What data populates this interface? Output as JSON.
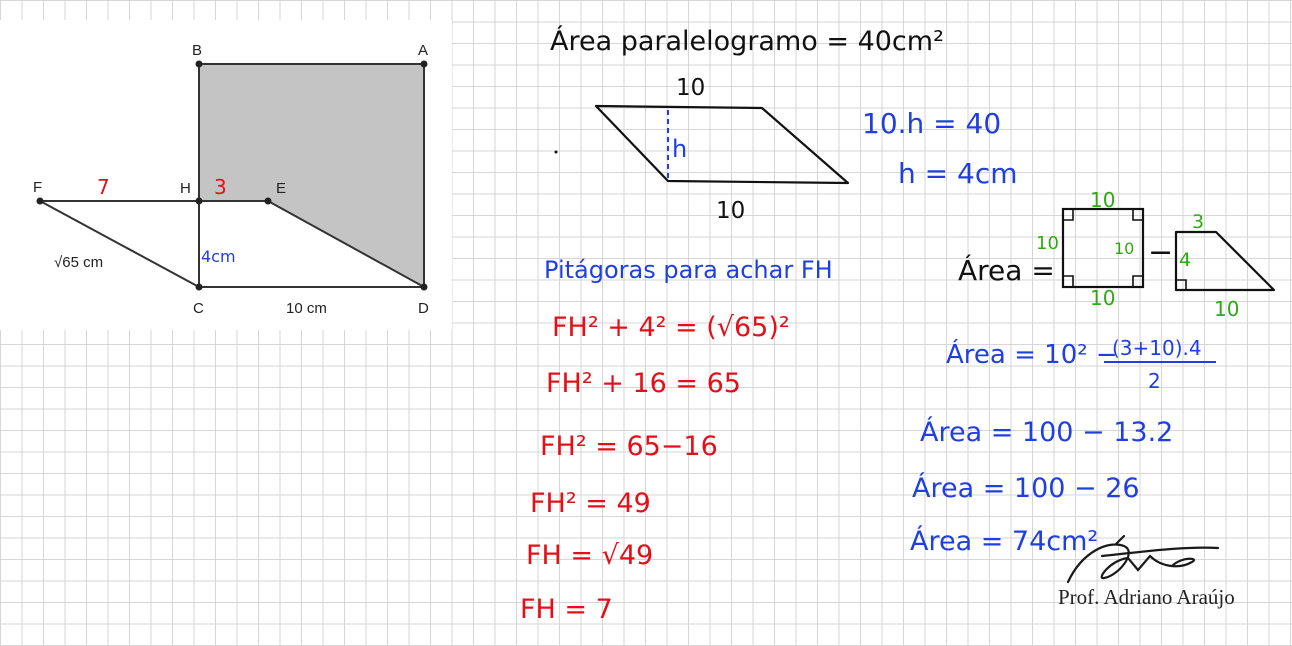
{
  "geometry_figure": {
    "points": {
      "A": "A",
      "B": "B",
      "C": "C",
      "D": "D",
      "E": "E",
      "F": "F",
      "H": "H"
    },
    "label_fc": "√65 cm",
    "label_cd": "10 cm",
    "label_fh": "7",
    "label_he": "3",
    "label_hc": "4cm"
  },
  "parallelogram": {
    "title": "Área paralelogramo = 40cm²",
    "top_side": "10",
    "bottom_side": "10",
    "height": "h",
    "eq1": "10.h = 40",
    "eq2": "h = 4cm"
  },
  "pythagoras": {
    "heading": "Pitágoras para achar FH",
    "steps": [
      "FH² + 4² = (√65)²",
      "FH² + 16 = 65",
      "FH² = 65−16",
      "FH² = 49",
      "FH = √49",
      "FH = 7"
    ]
  },
  "area_diagram": {
    "label": "Área =",
    "square_top": "10",
    "square_left": "10",
    "square_right": "10",
    "square_bottom": "10",
    "minus": "−",
    "trap_top": "3",
    "trap_height": "4",
    "trap_bottom": "10"
  },
  "area_steps": [
    "Área = 10² − (3+10).4 / 2",
    "Área = 100 − 13.2",
    "Área = 100 − 26",
    "Área = 74cm²"
  ],
  "area_fraction": {
    "lead": "Área = 10² − ",
    "numerator": "(3+10).4",
    "denominator": "2"
  },
  "signature": {
    "text": "Prof. Adriano Araújo"
  },
  "colors": {
    "shaded": "#c4c4c4",
    "blue": "#1f3fe0",
    "red": "#e3101a",
    "green": "#2faa14"
  }
}
